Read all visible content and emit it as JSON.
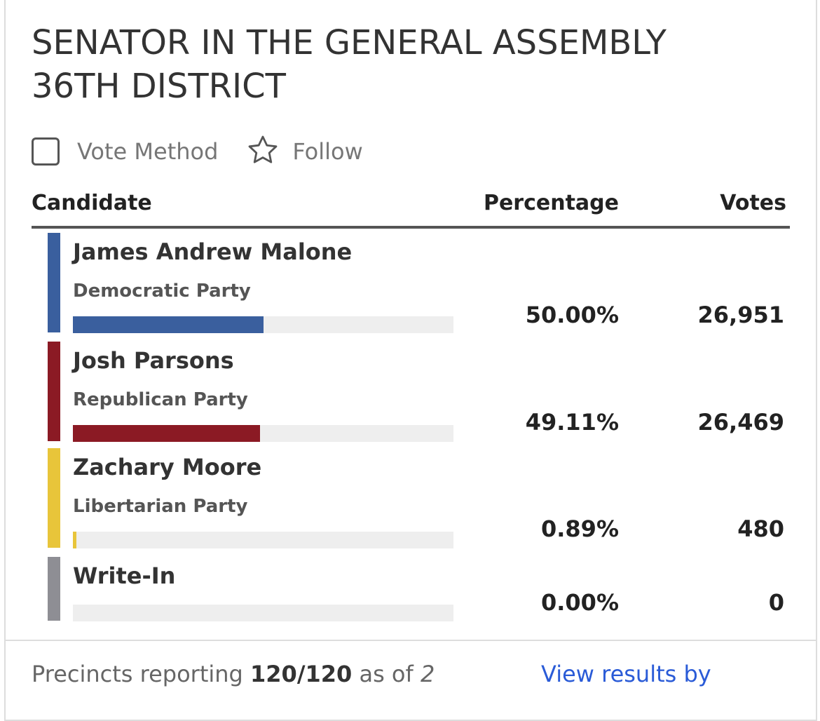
{
  "contest": {
    "title_line1": "SENATOR IN THE GENERAL ASSEMBLY",
    "title_line2": "36TH DISTRICT"
  },
  "controls": {
    "vote_method_label": "Vote Method",
    "vote_method_checked": false,
    "follow_label": "Follow",
    "follow_icon": "star-outline-icon"
  },
  "table": {
    "headers": {
      "candidate": "Candidate",
      "percentage": "Percentage",
      "votes": "Votes"
    },
    "rows": [
      {
        "name": "James Andrew Malone",
        "party": "Democratic Party",
        "percentage": "50.00%",
        "votes": "26,951",
        "share": 0.5,
        "color": "#3a5f9e"
      },
      {
        "name": "Josh Parsons",
        "party": "Republican Party",
        "percentage": "49.11%",
        "votes": "26,469",
        "share": 0.4911,
        "color": "#8b1a24"
      },
      {
        "name": "Zachary Moore",
        "party": "Libertarian Party",
        "percentage": "0.89%",
        "votes": "480",
        "share": 0.0089,
        "color": "#e8c53a"
      },
      {
        "name": "Write-In",
        "party": "",
        "percentage": "0.00%",
        "votes": "0",
        "share": 0.0,
        "color": "#8e8e94"
      }
    ]
  },
  "footer": {
    "precincts_prefix": "Precincts reporting ",
    "precincts_count": "120/120",
    "precincts_middle": " as of ",
    "precincts_time": "2",
    "view_link": "View results by"
  }
}
